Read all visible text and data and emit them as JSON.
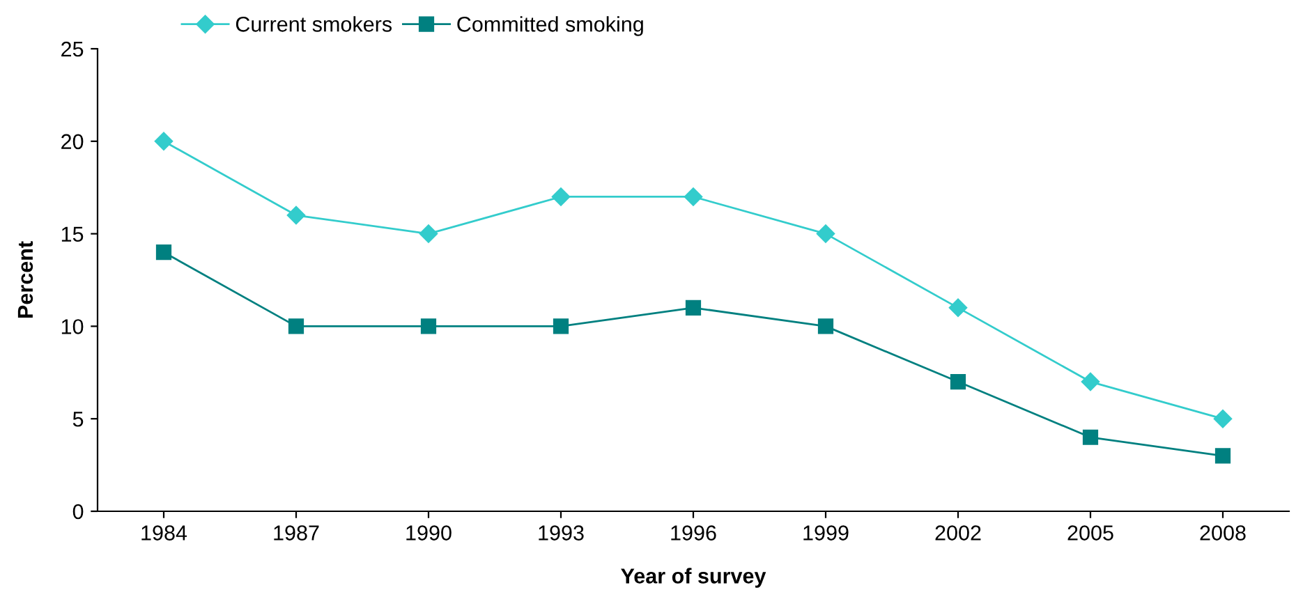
{
  "chart_data": {
    "type": "line",
    "xlabel": "Year of survey",
    "ylabel": "Percent",
    "categories": [
      "1984",
      "1987",
      "1990",
      "1993",
      "1996",
      "1999",
      "2002",
      "2005",
      "2008"
    ],
    "series": [
      {
        "name": "Current smokers",
        "color": "#33cccc",
        "marker": "diamond",
        "values": [
          20,
          16,
          15,
          17,
          17,
          15,
          11,
          7,
          5
        ]
      },
      {
        "name": "Committed smoking",
        "color": "#008080",
        "marker": "square",
        "values": [
          14,
          10,
          10,
          10,
          11,
          10,
          7,
          4,
          3
        ]
      }
    ],
    "ylim": [
      0,
      25
    ],
    "yticks": [
      0,
      5,
      10,
      15,
      20,
      25
    ],
    "grid": false,
    "legend": "top left",
    "line_style": "solid"
  }
}
